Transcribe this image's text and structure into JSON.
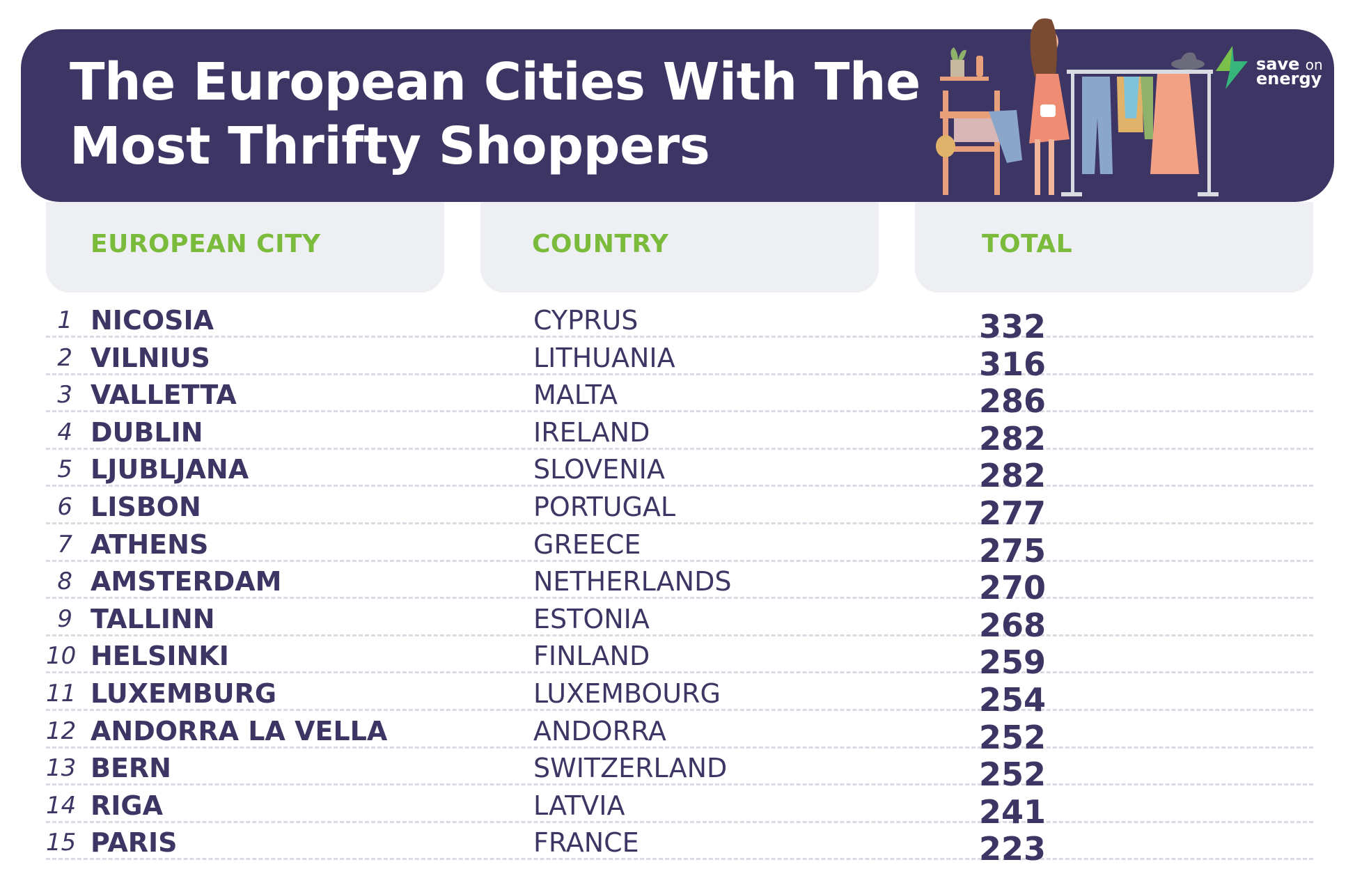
{
  "title_line1": "The European Cities With The",
  "title_line2": "Most Thrifty Shoppers",
  "logo": {
    "word1": "save",
    "word2": "on",
    "word3": "energy"
  },
  "colors": {
    "banner": "#3d3563",
    "header_text": "#7bbb3c",
    "header_bg": "#eeeff3",
    "text": "#3d3563"
  },
  "columns": {
    "city": "EUROPEAN CITY",
    "country": "COUNTRY",
    "total": "TOTAL"
  },
  "rows": [
    {
      "rank": "1",
      "city": "NICOSIA",
      "country": "CYPRUS",
      "total": "332"
    },
    {
      "rank": "2",
      "city": "VILNIUS",
      "country": "LITHUANIA",
      "total": "316"
    },
    {
      "rank": "3",
      "city": "VALLETTA",
      "country": "MALTA",
      "total": "286"
    },
    {
      "rank": "4",
      "city": "DUBLIN",
      "country": "IRELAND",
      "total": "282"
    },
    {
      "rank": "5",
      "city": "LJUBLJANA",
      "country": "SLOVENIA",
      "total": "282"
    },
    {
      "rank": "6",
      "city": "LISBON",
      "country": "PORTUGAL",
      "total": "277"
    },
    {
      "rank": "7",
      "city": "ATHENS",
      "country": "GREECE",
      "total": "275"
    },
    {
      "rank": "8",
      "city": "AMSTERDAM",
      "country": "NETHERLANDS",
      "total": "270"
    },
    {
      "rank": "9",
      "city": "TALLINN",
      "country": "ESTONIA",
      "total": "268"
    },
    {
      "rank": "10",
      "city": "HELSINKI",
      "country": "FINLAND",
      "total": "259"
    },
    {
      "rank": "11",
      "city": "LUXEMBURG",
      "country": "LUXEMBOURG",
      "total": "254"
    },
    {
      "rank": "12",
      "city": "ANDORRA LA VELLA",
      "country": "ANDORRA",
      "total": "252"
    },
    {
      "rank": "13",
      "city": "BERN",
      "country": "SWITZERLAND",
      "total": "252"
    },
    {
      "rank": "14",
      "city": "RIGA",
      "country": "LATVIA",
      "total": "241"
    },
    {
      "rank": "15",
      "city": "PARIS",
      "country": "FRANCE",
      "total": "223"
    }
  ]
}
